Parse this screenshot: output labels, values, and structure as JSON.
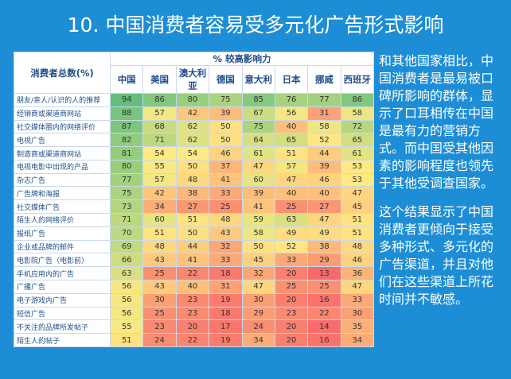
{
  "title": "10. 中国消费者容易受多元化广告形式影响",
  "table": {
    "group_header": "% 较高影响力",
    "row_header": "消费者总数(%)",
    "columns": [
      "中国",
      "美国",
      "澳大利亚",
      "德国",
      "意大利",
      "日本",
      "挪威",
      "西班牙"
    ],
    "rows": [
      {
        "label": "朋友/亲人/认识的人的推荐",
        "values": [
          94,
          86,
          80,
          75,
          85,
          76,
          77,
          86
        ]
      },
      {
        "label": "经销商或渠道商网站",
        "values": [
          88,
          57,
          42,
          39,
          67,
          56,
          31,
          58
        ]
      },
      {
        "label": "社交媒体圈内的网络评价",
        "values": [
          87,
          68,
          62,
          50,
          75,
          40,
          58,
          72
        ]
      },
      {
        "label": "电视广告",
        "values": [
          82,
          71,
          62,
          50,
          64,
          65,
          52,
          65
        ]
      },
      {
        "label": "制造商或渠道商网站",
        "values": [
          81,
          54,
          54,
          46,
          61,
          51,
          44,
          61
        ]
      },
      {
        "label": "电视电影中出现的产品",
        "values": [
          80,
          55,
          50,
          37,
          47,
          57,
          39,
          53
        ]
      },
      {
        "label": "杂志广告",
        "values": [
          77,
          57,
          48,
          41,
          60,
          47,
          46,
          53
        ]
      },
      {
        "label": "广告牌和海报",
        "values": [
          75,
          42,
          38,
          33,
          39,
          40,
          40,
          47
        ]
      },
      {
        "label": "社交媒体广告",
        "values": [
          73,
          34,
          27,
          25,
          41,
          25,
          27,
          45
        ]
      },
      {
        "label": "陌生人的网络评价",
        "values": [
          71,
          60,
          51,
          48,
          59,
          63,
          47,
          51
        ]
      },
      {
        "label": "报纸广告",
        "values": [
          70,
          51,
          50,
          43,
          58,
          49,
          49,
          51
        ]
      },
      {
        "label": "企业或品牌的邮件",
        "values": [
          69,
          48,
          44,
          32,
          50,
          52,
          38,
          48
        ]
      },
      {
        "label": "电影院广告（电影前）",
        "values": [
          66,
          43,
          41,
          33,
          45,
          33,
          29,
          46
        ]
      },
      {
        "label": "手机应用内的广告",
        "values": [
          63,
          25,
          22,
          18,
          32,
          20,
          13,
          36
        ]
      },
      {
        "label": "广播广告",
        "values": [
          56,
          43,
          40,
          31,
          47,
          25,
          25,
          47
        ]
      },
      {
        "label": "电子游戏内广告",
        "values": [
          56,
          30,
          23,
          19,
          30,
          20,
          16,
          33
        ]
      },
      {
        "label": "短信广告",
        "values": [
          56,
          25,
          23,
          18,
          29,
          23,
          22,
          30
        ]
      },
      {
        "label": "不关注的品牌所发帖子",
        "values": [
          55,
          23,
          20,
          17,
          24,
          20,
          14,
          35
        ]
      },
      {
        "label": "陌生人的帖子",
        "values": [
          51,
          24,
          22,
          19,
          34,
          20,
          16,
          34
        ]
      }
    ]
  },
  "text": {
    "paragraphs": [
      "和其他国家相比，中国消费者是最易被口碑所影响的群体，显示了口耳相传在中国是最有力的营销方式。而中国受其他因素的影响程度也领先于其他受调查国家。",
      "这个结果显示了中国消费者更倾向于接受多种形式、多元化的广告渠道，并且对他们在这些渠道上所花时间并不敏感。"
    ]
  }
}
